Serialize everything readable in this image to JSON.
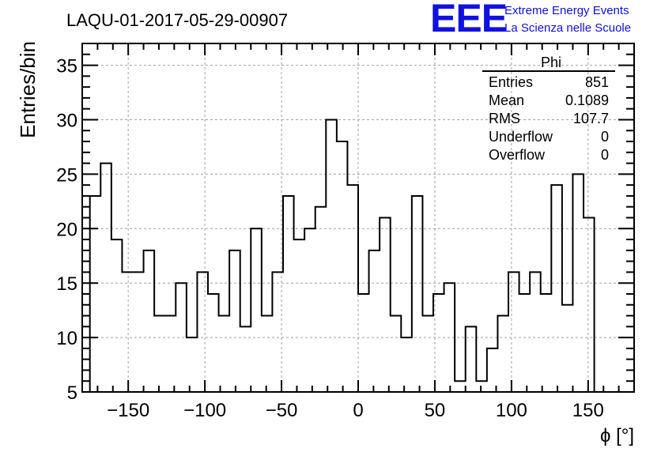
{
  "title": "LAQU-01-2017-05-29-00907",
  "logo": {
    "mark": "EEE",
    "line1": "Extreme Energy Events",
    "line2": "La Scienza nelle Scuole",
    "color": "#1010e0"
  },
  "stats": {
    "name": "Phi",
    "rows": [
      {
        "label": "Entries",
        "value": "851"
      },
      {
        "label": "Mean",
        "value": "0.1089"
      },
      {
        "label": "RMS",
        "value": "107.7"
      },
      {
        "label": "Underflow",
        "value": "0"
      },
      {
        "label": "Overflow",
        "value": "0"
      }
    ]
  },
  "chart_data": {
    "type": "bar",
    "style": "step-histogram",
    "xlabel": "ϕ [°]",
    "ylabel": "Entries/bin",
    "xlim": [
      -180,
      180
    ],
    "ylim": [
      5,
      37
    ],
    "bin_low_edge": -175,
    "bin_width": 7,
    "values": [
      23,
      26,
      19,
      16,
      16,
      18,
      12,
      12,
      15,
      10,
      16,
      14,
      12,
      18,
      11,
      20,
      12,
      16,
      23,
      19,
      20,
      22,
      30,
      28,
      24,
      14,
      18,
      21,
      12,
      10,
      23,
      12,
      14,
      15,
      6,
      11,
      6,
      9,
      12,
      16,
      14,
      16,
      14,
      24,
      13,
      25,
      21
    ],
    "x_ticks": [
      "−150",
      "−100",
      "−50",
      "0",
      "50",
      "100",
      "150"
    ],
    "x_tick_values": [
      -150,
      -100,
      -50,
      0,
      50,
      100,
      150
    ],
    "y_ticks": [
      "5",
      "10",
      "15",
      "20",
      "25",
      "30",
      "35"
    ],
    "y_tick_values": [
      5,
      10,
      15,
      20,
      25,
      30,
      35
    ],
    "grid": true,
    "line_color": "#000000"
  }
}
